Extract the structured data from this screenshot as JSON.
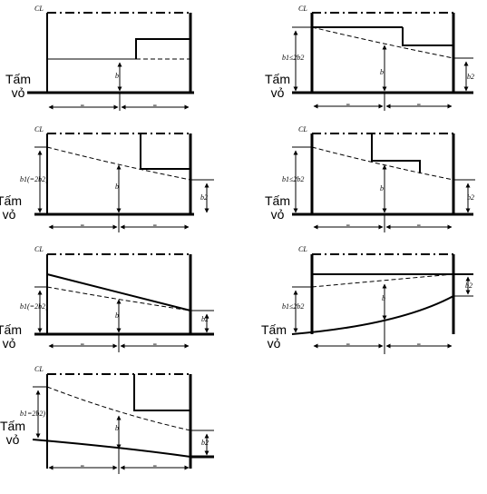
{
  "cl_label": "CL",
  "plate_label": "Tấm\nvỏ",
  "equal_label": "=",
  "b_label": "b",
  "b2_label": "b2",
  "b1_le_label": "b1≤2b2",
  "b1_eq_label": "b1(=2b2)",
  "b1_eq_label_short": "b1=2b2)"
}
